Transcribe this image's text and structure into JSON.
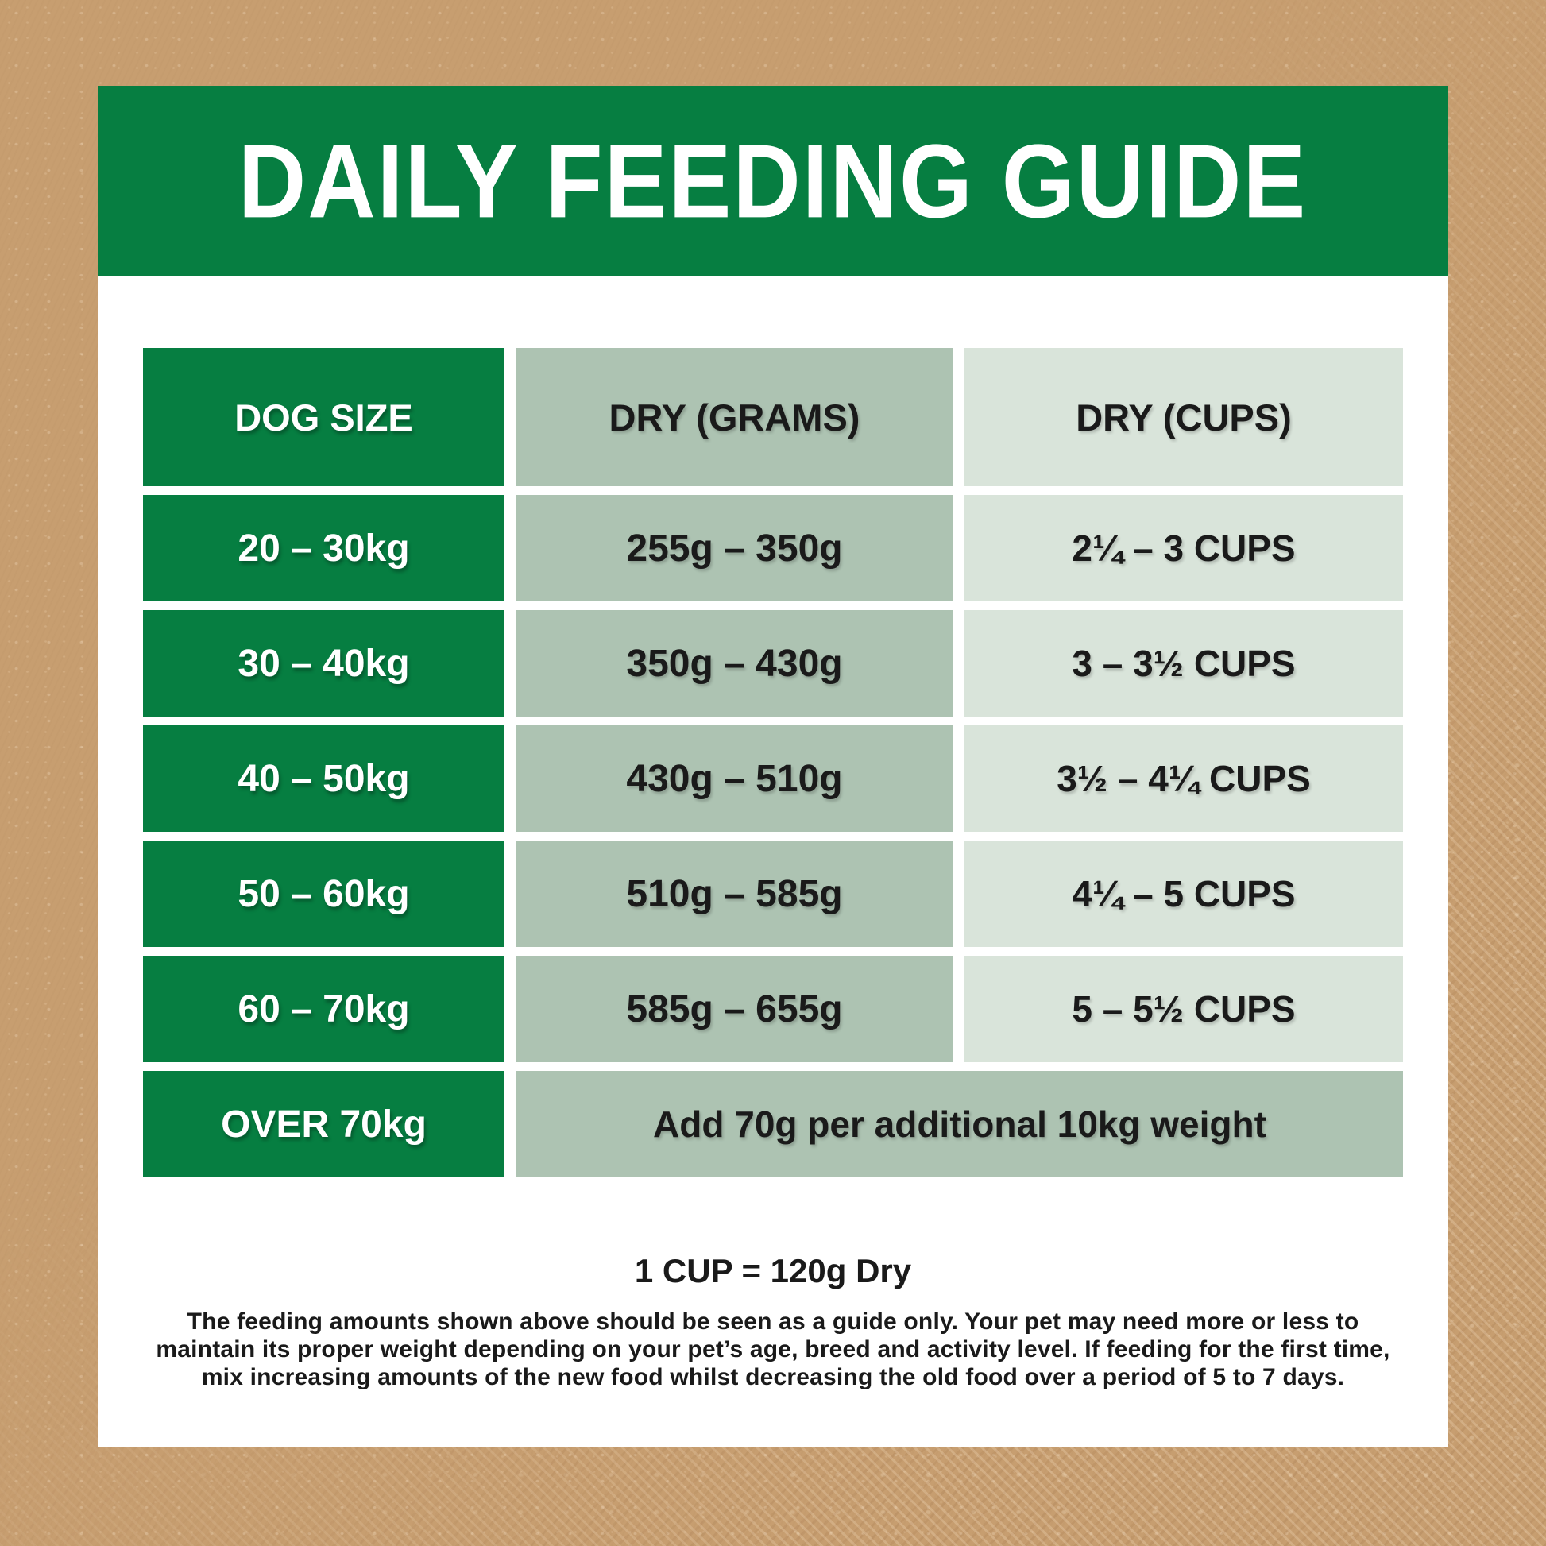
{
  "title": "DAILY FEEDING GUIDE",
  "colors": {
    "background_brown": "#C79E70",
    "card_white": "#FFFFFF",
    "brand_green": "#067E41",
    "sage_medium": "#ADC3B2",
    "sage_light": "#D9E4DA",
    "text_dark": "#1A1A1A"
  },
  "table": {
    "headers": [
      "DOG SIZE",
      "DRY (GRAMS)",
      "DRY (CUPS)"
    ],
    "rows": [
      {
        "size": "20 – 30kg",
        "grams": "255g – 350g",
        "cups": "2¼ – 3 CUPS"
      },
      {
        "size": "30 – 40kg",
        "grams": "350g – 430g",
        "cups": "3 – 3½ CUPS"
      },
      {
        "size": "40 – 50kg",
        "grams": "430g – 510g",
        "cups": "3½ – 4¼ CUPS"
      },
      {
        "size": "50 – 60kg",
        "grams": "510g – 585g",
        "cups": "4¼ – 5 CUPS"
      },
      {
        "size": "60 – 70kg",
        "grams": "585g – 655g",
        "cups": "5 – 5½ CUPS"
      }
    ],
    "over_row": {
      "size": "OVER 70kg",
      "note": "Add 70g per additional 10kg weight"
    }
  },
  "footnote": {
    "cup_equivalence": "1 CUP = 120g Dry",
    "disclaimer": "The feeding amounts shown above should be seen as a guide only. Your pet may need more or less to maintain its proper weight depending on your pet’s age, breed and activity level. If feeding for the first time, mix increasing amounts of the new food whilst decreasing the old food over a period of 5 to 7 days."
  }
}
